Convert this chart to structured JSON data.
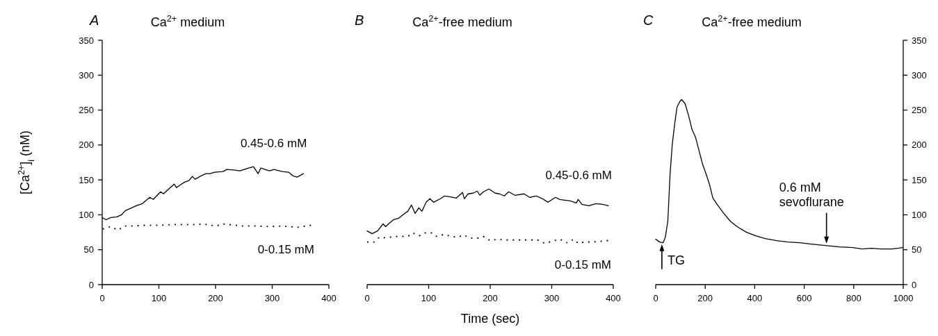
{
  "chart_data": [
    {
      "type": "line",
      "title": "A",
      "subtitle": "Ca$^{2+}$ medium",
      "ylabel": "[Ca$^{2+}$]$_{i}$ (nM)",
      "xlim": [
        0,
        400
      ],
      "xticks": [
        0,
        100,
        200,
        300,
        400
      ],
      "ylim": [
        0,
        350
      ],
      "yticks": [
        0,
        50,
        100,
        150,
        200,
        250,
        300,
        350
      ],
      "series": [
        {
          "name": "0.45-0.6 mM",
          "color": "#000000",
          "line_style": "solid",
          "x": [
            0,
            7,
            15,
            26,
            34,
            41,
            52,
            60,
            71,
            78,
            84,
            90,
            103,
            108,
            116,
            127,
            131,
            138,
            146,
            153,
            159,
            164,
            175,
            183,
            190,
            198,
            213,
            220,
            235,
            243,
            258,
            267,
            275,
            280,
            295,
            303,
            318,
            329,
            336,
            344,
            355
          ],
          "values": [
            96,
            93,
            96,
            97,
            100,
            106,
            110,
            113,
            116,
            121,
            125,
            122,
            133,
            130,
            136,
            144,
            139,
            143,
            147,
            149,
            155,
            151,
            156,
            159,
            159,
            161,
            162,
            165,
            164,
            163,
            167,
            169,
            159,
            167,
            163,
            165,
            162,
            161,
            156,
            154,
            159
          ]
        },
        {
          "name": "0-0.15 mM",
          "color": "#000000",
          "line_style": "dotted",
          "x": [
            2,
            15,
            28,
            39,
            56,
            78,
            101,
            123,
            146,
            168,
            179,
            190,
            202,
            211,
            224,
            247,
            273,
            295,
            318,
            344,
            368
          ],
          "values": [
            80,
            83,
            78,
            84,
            84,
            85,
            85,
            86,
            86,
            86,
            87,
            85,
            84,
            87,
            86,
            84,
            84,
            83,
            84,
            82,
            85
          ]
        }
      ]
    },
    {
      "type": "line",
      "title": "B",
      "subtitle": "Ca$^{2+}$-free medium",
      "xlabel": "Time (sec)",
      "xlim": [
        0,
        400
      ],
      "xticks": [
        0,
        100,
        200,
        300,
        400
      ],
      "ylim": [
        0,
        350
      ],
      "tick_labels": "x",
      "series": [
        {
          "name": "0.45-0.6 mM",
          "color": "#000000",
          "line_style": "solid",
          "x": [
            0,
            8,
            17,
            26,
            30,
            36,
            43,
            51,
            58,
            66,
            72,
            78,
            84,
            89,
            96,
            102,
            108,
            119,
            126,
            134,
            145,
            155,
            158,
            164,
            172,
            179,
            183,
            189,
            198,
            208,
            215,
            223,
            230,
            240,
            255,
            264,
            275,
            285,
            294,
            306,
            313,
            330,
            340,
            343,
            349,
            360,
            372,
            383,
            392
          ],
          "values": [
            77,
            73,
            77,
            87,
            83,
            88,
            93,
            95,
            100,
            105,
            114,
            102,
            110,
            105,
            118,
            123,
            118,
            123,
            127,
            126,
            124,
            132,
            123,
            130,
            131,
            134,
            128,
            133,
            137,
            131,
            130,
            127,
            133,
            128,
            130,
            125,
            127,
            123,
            118,
            125,
            122,
            120,
            117,
            122,
            115,
            113,
            116,
            115,
            113
          ]
        },
        {
          "name": "0-0.15 mM",
          "color": "#000000",
          "line_style": "dotted",
          "x": [
            1,
            11,
            20,
            30,
            45,
            57,
            66,
            74,
            85,
            94,
            106,
            113,
            126,
            136,
            147,
            157,
            166,
            177,
            189,
            200,
            211,
            225,
            236,
            247,
            258,
            268,
            277,
            289,
            300,
            313,
            325,
            336,
            343,
            353,
            366,
            379,
            391
          ],
          "values": [
            61,
            61,
            68,
            67,
            69,
            69,
            69,
            74,
            70,
            74,
            74,
            69,
            72,
            69,
            68,
            71,
            67,
            66,
            69,
            63,
            65,
            64,
            64,
            64,
            64,
            64,
            64,
            59,
            62,
            65,
            60,
            65,
            59,
            61,
            61,
            62,
            63
          ]
        }
      ]
    },
    {
      "type": "line",
      "title": "C",
      "subtitle": "Ca$^{2+}$-free medium",
      "xlim": [
        0,
        1000
      ],
      "xticks": [
        0,
        200,
        400,
        600,
        800,
        1000
      ],
      "ylim": [
        0,
        350
      ],
      "yticks": [
        0,
        50,
        100,
        150,
        200,
        250,
        300,
        350
      ],
      "annotations": [
        {
          "text": "TG",
          "x": 25,
          "y": 60
        },
        {
          "text": "0.6 mM\nsevoflurane",
          "x": 690,
          "y": 57
        }
      ],
      "series": [
        {
          "color": "#000000",
          "line_style": "solid",
          "x": [
            0,
            16,
            30,
            39,
            49,
            58,
            67,
            77,
            86,
            97,
            105,
            119,
            133,
            147,
            161,
            175,
            189,
            203,
            217,
            231,
            250,
            273,
            301,
            329,
            367,
            404,
            442,
            488,
            535,
            582,
            629,
            685,
            741,
            797,
            834,
            872,
            909,
            956,
            998
          ],
          "values": [
            65,
            61,
            60,
            68,
            91,
            158,
            201,
            231,
            254,
            262,
            265,
            259,
            242,
            222,
            211,
            192,
            173,
            159,
            144,
            124,
            114,
            103,
            91,
            83,
            75,
            70,
            66,
            63,
            61,
            60,
            58,
            56,
            54,
            53,
            51,
            52,
            51,
            51,
            53
          ]
        }
      ]
    }
  ]
}
